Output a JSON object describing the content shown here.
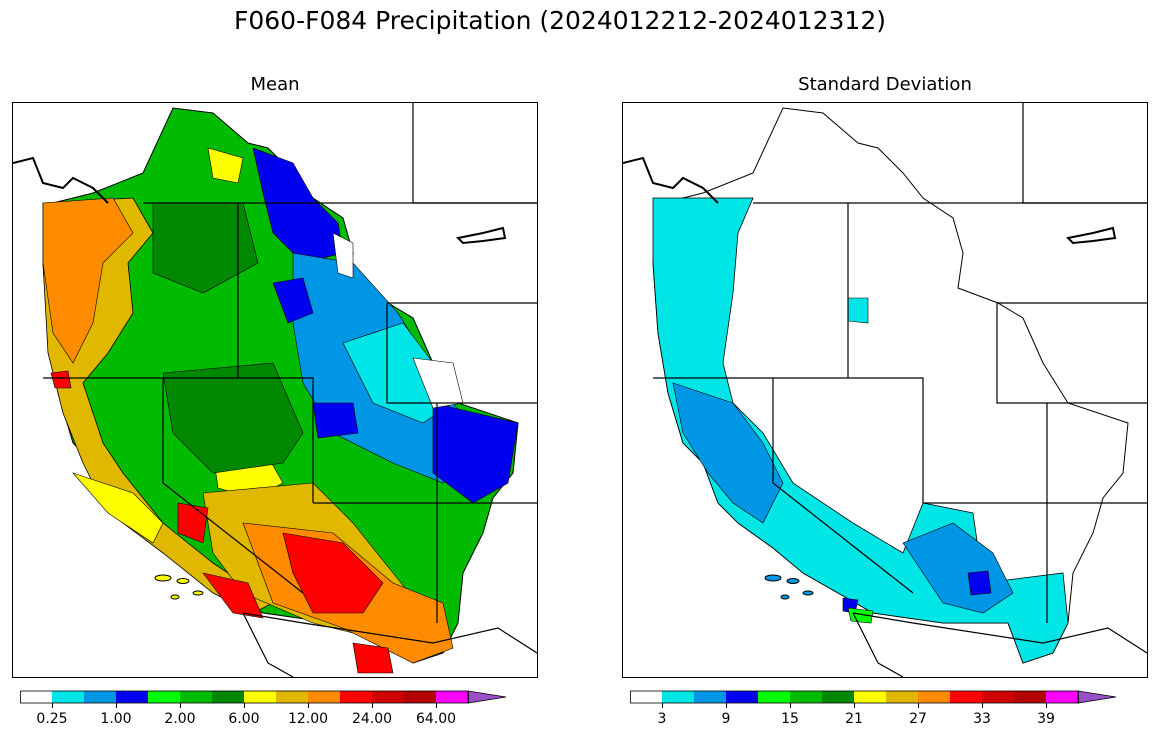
{
  "title": "F060-F084 Precipitation (2024012212-2024012312)",
  "panels": [
    {
      "title": "Mean",
      "colorbar": {
        "colors": [
          "#ffffff",
          "#00e5e5",
          "#0096e6",
          "#0000f0",
          "#00ff00",
          "#00bb00",
          "#008800",
          "#ffff00",
          "#e0b800",
          "#ff8c00",
          "#ff0000",
          "#d00000",
          "#b30000",
          "#ff00ff",
          "#9950c8"
        ],
        "tick_labels": [
          "0.25",
          "1.00",
          "2.00",
          "6.00",
          "12.00",
          "24.00",
          "64.00"
        ]
      }
    },
    {
      "title": "Standard Deviation",
      "colorbar": {
        "colors": [
          "#ffffff",
          "#00e5e5",
          "#0096e6",
          "#0000f0",
          "#00ff00",
          "#00bb00",
          "#008800",
          "#ffff00",
          "#e0b800",
          "#ff8c00",
          "#ff0000",
          "#d00000",
          "#b30000",
          "#ff00ff",
          "#9950c8"
        ],
        "tick_labels": [
          "3",
          "9",
          "15",
          "21",
          "27",
          "33",
          "39"
        ]
      }
    }
  ]
}
